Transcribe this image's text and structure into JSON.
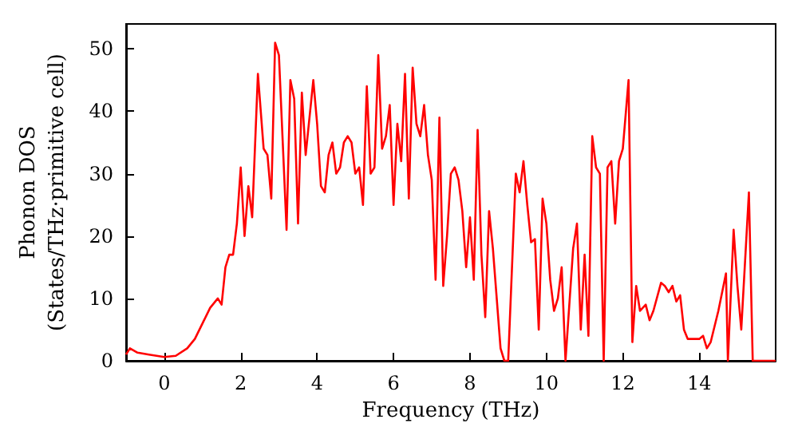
{
  "chart_data": {
    "type": "line",
    "xlabel": "Frequency (THz)",
    "ylabel": "Phonon DOS\n(States/THz·primitive cell)",
    "xlim": [
      -1,
      16
    ],
    "ylim": [
      0,
      54
    ],
    "xticks": [
      0,
      2,
      4,
      6,
      8,
      10,
      12,
      14
    ],
    "yticks": [
      0,
      10,
      20,
      30,
      40,
      50
    ],
    "grid": false,
    "marker": "none",
    "line_style": "solid",
    "x": [
      -1,
      -0.9,
      -0.7,
      -0.4,
      0,
      0.3,
      0.6,
      0.8,
      1.0,
      1.2,
      1.4,
      1.5,
      1.6,
      1.7,
      1.8,
      1.9,
      2.0,
      2.1,
      2.2,
      2.3,
      2.45,
      2.6,
      2.7,
      2.8,
      2.9,
      3.0,
      3.1,
      3.2,
      3.3,
      3.4,
      3.5,
      3.6,
      3.7,
      3.9,
      4.0,
      4.1,
      4.2,
      4.3,
      4.4,
      4.5,
      4.6,
      4.7,
      4.8,
      4.9,
      5.0,
      5.1,
      5.2,
      5.3,
      5.4,
      5.5,
      5.6,
      5.7,
      5.8,
      5.9,
      6.0,
      6.1,
      6.2,
      6.3,
      6.4,
      6.5,
      6.6,
      6.7,
      6.8,
      6.9,
      7.0,
      7.1,
      7.2,
      7.3,
      7.4,
      7.5,
      7.6,
      7.7,
      7.8,
      7.9,
      8.0,
      8.1,
      8.2,
      8.3,
      8.4,
      8.5,
      8.6,
      8.8,
      8.9,
      9.0,
      9.2,
      9.3,
      9.4,
      9.5,
      9.6,
      9.7,
      9.8,
      9.9,
      10.0,
      10.1,
      10.2,
      10.3,
      10.4,
      10.5,
      10.7,
      10.8,
      10.9,
      11.0,
      11.1,
      11.2,
      11.3,
      11.4,
      11.5,
      11.6,
      11.7,
      11.8,
      11.9,
      12.0,
      12.15,
      12.25,
      12.35,
      12.45,
      12.6,
      12.7,
      12.8,
      13.0,
      13.1,
      13.2,
      13.3,
      13.4,
      13.5,
      13.6,
      13.7,
      14.0,
      14.1,
      14.2,
      14.3,
      14.5,
      14.7,
      14.75,
      14.9,
      15.0,
      15.1,
      15.3,
      15.4,
      16.0
    ],
    "series": [
      {
        "color": "#ff0000",
        "values": [
          1,
          2,
          1.3,
          1,
          0.6,
          0.8,
          2,
          3.5,
          6,
          8.5,
          10,
          9,
          15,
          17,
          17,
          22,
          31,
          20,
          28,
          23,
          46,
          34,
          33,
          26,
          51,
          49,
          35,
          21,
          45,
          42,
          22,
          43,
          33,
          45,
          38,
          28,
          27,
          33,
          35,
          30,
          31,
          35,
          36,
          35,
          30,
          31,
          25,
          44,
          30,
          31,
          49,
          34,
          36,
          41,
          25,
          38,
          32,
          46,
          26,
          47,
          38,
          36,
          41,
          33,
          29,
          13,
          39,
          12,
          20,
          30,
          31,
          29,
          24,
          15,
          23,
          13,
          37,
          17,
          7,
          24,
          18,
          2,
          0,
          0,
          30,
          27,
          32,
          25,
          19,
          19.5,
          5,
          26,
          22,
          13,
          8,
          10,
          15,
          0,
          18,
          22,
          5,
          17,
          4,
          36,
          31,
          30,
          0,
          31,
          32,
          22,
          32,
          34,
          45,
          3,
          12,
          8,
          9,
          6.5,
          8,
          12.5,
          12,
          11,
          12,
          9.5,
          10.5,
          5,
          3.5,
          3.5,
          4,
          2,
          3,
          8,
          14,
          0,
          21,
          12,
          5,
          27,
          0,
          0
        ]
      }
    ]
  }
}
